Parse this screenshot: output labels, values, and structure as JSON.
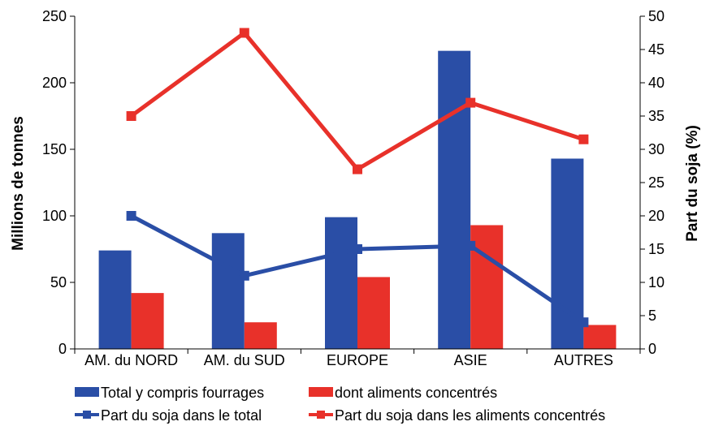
{
  "chart_data": {
    "type": "bar",
    "categories": [
      "AM. du NORD",
      "AM. du SUD",
      "EUROPE",
      "ASIE",
      "AUTRES"
    ],
    "bar_series": [
      {
        "name": "Total y compris fourrages",
        "values": [
          74,
          87,
          99,
          224,
          143
        ],
        "color": "#2a4ea6"
      },
      {
        "name": "dont aliments concentrés",
        "values": [
          42,
          20,
          54,
          93,
          18
        ],
        "color": "#e8312a"
      }
    ],
    "line_series": [
      {
        "name": "Part du soja dans le total",
        "values": [
          20,
          11,
          15,
          15.5,
          4
        ],
        "color": "#2a4ea6"
      },
      {
        "name": "Part du soja dans les aliments concentrés",
        "values": [
          35,
          47.5,
          27,
          37,
          31.5
        ],
        "color": "#e8312a"
      }
    ],
    "ylabel": "Millions de tonnes",
    "y2label": "Part du soja (%)",
    "ylim": [
      0,
      250
    ],
    "y2lim": [
      0,
      50
    ],
    "yticks": [
      "0",
      "50",
      "100",
      "150",
      "200",
      "250"
    ],
    "y2ticks": [
      "0",
      "5",
      "10",
      "15",
      "20",
      "25",
      "30",
      "35",
      "40",
      "45",
      "50"
    ],
    "grid": false,
    "legend_position": "bottom"
  }
}
